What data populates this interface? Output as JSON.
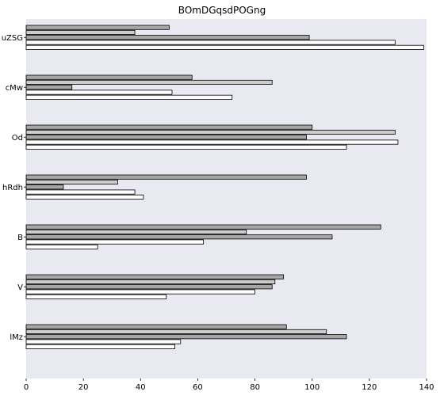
{
  "chart_data": {
    "type": "bar",
    "orientation": "horizontal",
    "title": "BOmDGqsdPOGng",
    "xlabel": "",
    "ylabel": "",
    "categories": [
      "uZSG",
      "cMw",
      "Od",
      "hRdh",
      "B",
      "V",
      "lMz"
    ],
    "series": [
      {
        "color": "#a6a6a6",
        "values": [
          50,
          58,
          100,
          98,
          124,
          90,
          91
        ]
      },
      {
        "color": "#cccccc",
        "values": [
          38,
          86,
          129,
          32,
          77,
          87,
          105
        ]
      },
      {
        "color": "#a6a6a6",
        "values": [
          99,
          16,
          98,
          13,
          107,
          86,
          112
        ]
      },
      {
        "color": "#ffffff",
        "values": [
          129,
          51,
          130,
          38,
          62,
          80,
          54
        ]
      },
      {
        "color": "#ffffff",
        "values": [
          139,
          72,
          112,
          41,
          25,
          49,
          52
        ]
      }
    ],
    "xlim": [
      0,
      140
    ],
    "xticks": [
      "0",
      "20",
      "40",
      "60",
      "80",
      "100",
      "120",
      "140"
    ],
    "grid": false,
    "legend": "none"
  }
}
